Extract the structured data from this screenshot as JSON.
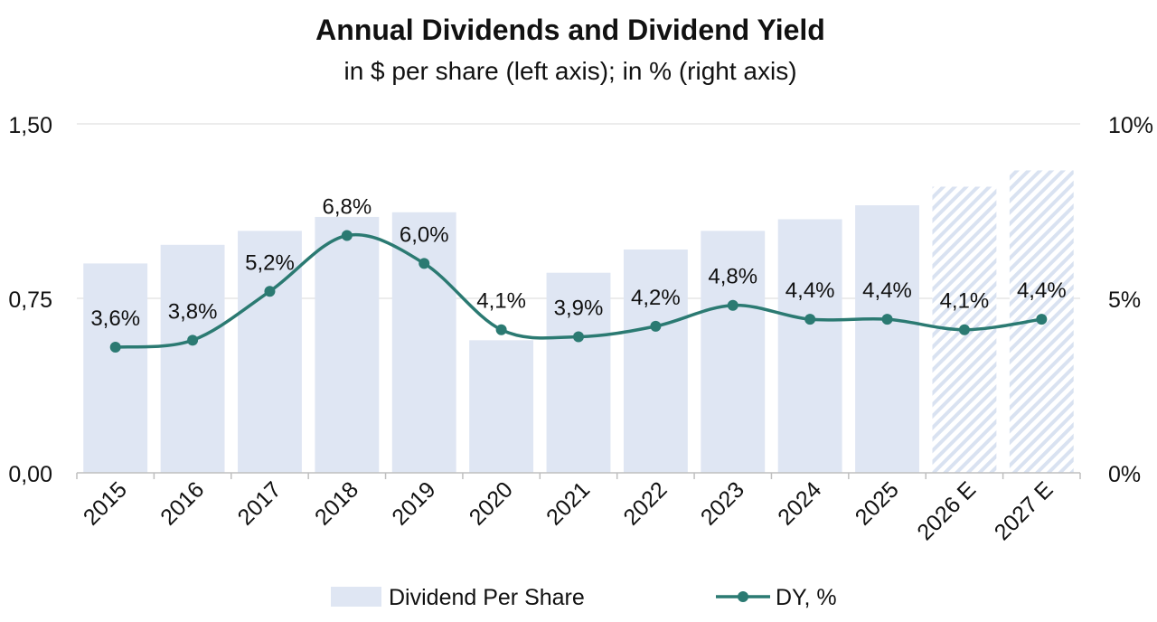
{
  "chart_data": {
    "type": "bar+line",
    "title": "Annual Dividends and Dividend Yield",
    "subtitle": "in $ per share (left axis); in % (right axis)",
    "categories": [
      "2015",
      "2016",
      "2017",
      "2018",
      "2019",
      "2020",
      "2021",
      "2022",
      "2023",
      "2024",
      "2025",
      "2026 E",
      "2027 E"
    ],
    "estimate_flags": [
      false,
      false,
      false,
      false,
      false,
      false,
      false,
      false,
      false,
      false,
      false,
      true,
      true
    ],
    "series": [
      {
        "name": "Dividend Per Share",
        "type": "bar",
        "axis": "left",
        "color": "#dfe6f3",
        "values": [
          0.9,
          0.98,
          1.04,
          1.1,
          1.12,
          0.57,
          0.86,
          0.96,
          1.04,
          1.09,
          1.15,
          1.23,
          1.3
        ]
      },
      {
        "name": "DY, %",
        "type": "line",
        "axis": "right",
        "color": "#2b7a72",
        "values": [
          3.6,
          3.8,
          5.2,
          6.8,
          6.0,
          4.1,
          3.9,
          4.2,
          4.8,
          4.4,
          4.4,
          4.1,
          4.4
        ],
        "labels": [
          "3,6%",
          "3,8%",
          "5,2%",
          "6,8%",
          "6,0%",
          "4,1%",
          "3,9%",
          "4,2%",
          "4,8%",
          "4,4%",
          "4,4%",
          "4,1%",
          "4,4%"
        ]
      }
    ],
    "y_left": {
      "range": [
        0,
        1.5
      ],
      "ticks": [
        0,
        0.75,
        1.5
      ],
      "tick_labels": [
        "0,00",
        "0,75",
        "1,50"
      ]
    },
    "y_right": {
      "range": [
        0,
        10
      ],
      "ticks": [
        0,
        5,
        10
      ],
      "tick_labels": [
        "0%",
        "5%",
        "10%"
      ]
    },
    "grid": true,
    "legend_position": "bottom"
  }
}
